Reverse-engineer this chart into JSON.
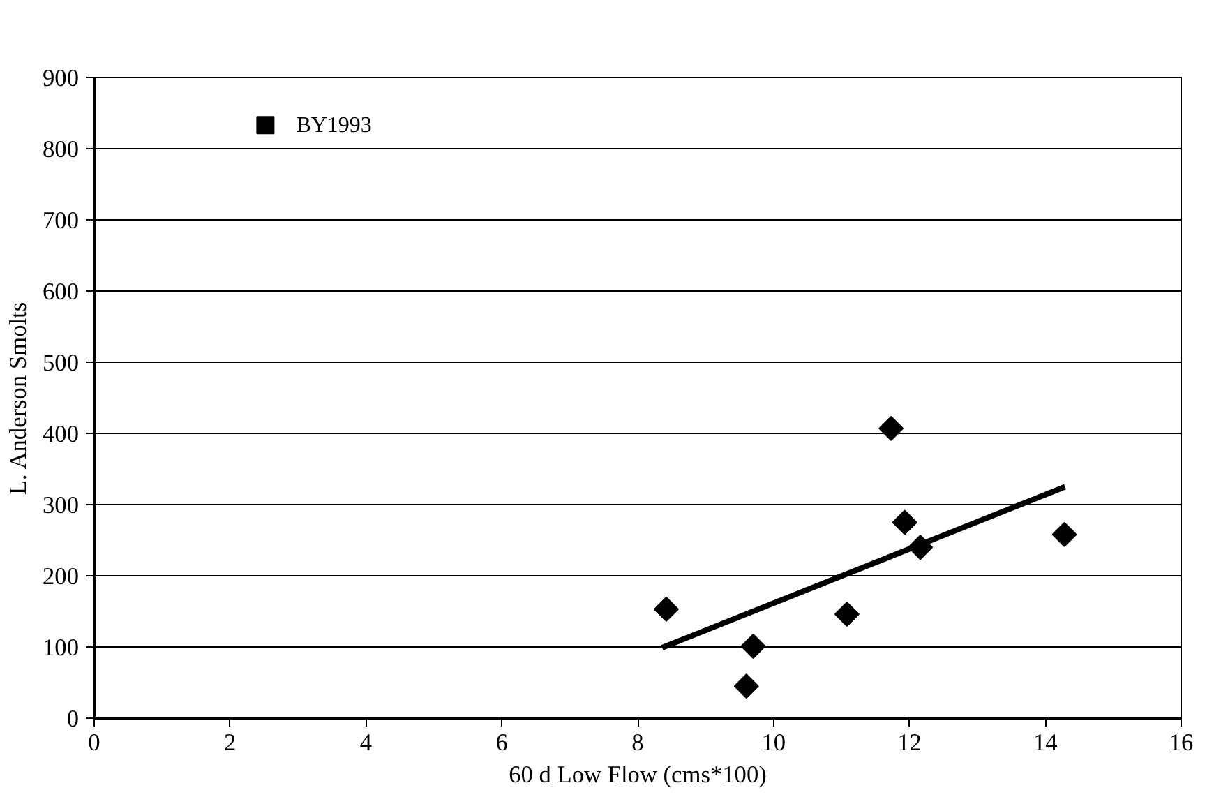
{
  "chart_data": {
    "type": "scatter",
    "xlabel": "60 d Low Flow (cms*100)",
    "ylabel": "L. Anderson Smolts",
    "xlim": [
      0,
      16
    ],
    "xticks": [
      0,
      2,
      4,
      6,
      8,
      10,
      12,
      14,
      16
    ],
    "ylim": [
      0,
      900
    ],
    "yticks": [
      0,
      100,
      200,
      300,
      400,
      500,
      600,
      700,
      800,
      900
    ],
    "grid": "y",
    "series": [
      {
        "marker": "diamond",
        "color": "#000000",
        "x": [
          8.42,
          9.7,
          9.6,
          11.08,
          11.73,
          11.93,
          12.16,
          14.28
        ],
        "values": [
          153,
          101,
          45,
          146,
          407,
          275,
          240,
          258
        ]
      },
      {
        "type": "line",
        "color": "#000000",
        "x": [
          8.36,
          14.29
        ],
        "values": [
          99,
          325
        ]
      },
      {
        "marker": "square",
        "name": "BY1993",
        "color": "#000000",
        "x": [
          2.52
        ],
        "values": [
          833
        ]
      }
    ]
  }
}
